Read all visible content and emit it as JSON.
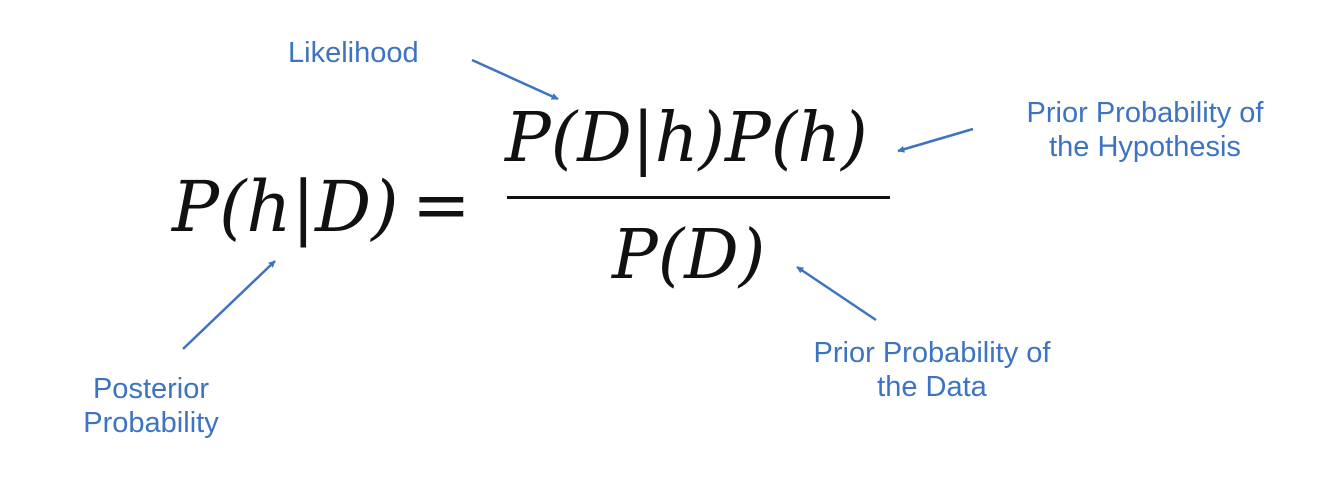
{
  "equation": {
    "lhs": "P(h|D)",
    "equals": "=",
    "numerator": "P(D|h)P(h)",
    "denominator": "P(D)"
  },
  "annotations": {
    "likelihood": "Likelihood",
    "prior_hypothesis": [
      "Prior Probability of",
      "the Hypothesis"
    ],
    "posterior": [
      "Posterior",
      "Probability"
    ],
    "prior_data": [
      "Prior Probability of",
      "the Data"
    ]
  },
  "colors": {
    "annotation": "#3d73c1",
    "math": "#111111"
  }
}
